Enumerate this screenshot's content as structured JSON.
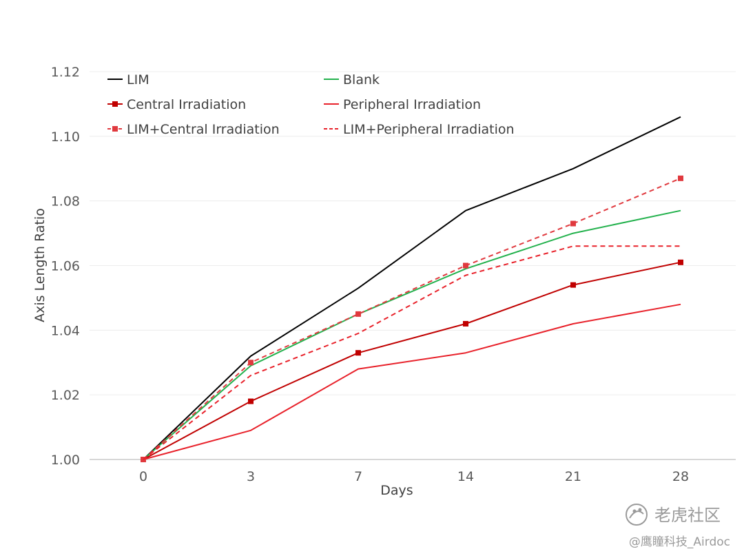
{
  "chart_data": {
    "type": "line",
    "title": "",
    "xlabel": "Days",
    "ylabel": "Axis Length Ratio",
    "categories": [
      "0",
      "3",
      "7",
      "14",
      "21",
      "28"
    ],
    "ylim": [
      1.0,
      1.12
    ],
    "yticks": [
      "1.00",
      "1.02",
      "1.04",
      "1.06",
      "1.08",
      "1.10",
      "1.12"
    ],
    "ytick_values": [
      1.0,
      1.02,
      1.04,
      1.06,
      1.08,
      1.1,
      1.12
    ],
    "grid": "horizontal",
    "legend_position": "top",
    "series": [
      {
        "name": "LIM",
        "values": [
          1.0,
          1.032,
          1.053,
          1.077,
          1.09,
          1.106
        ],
        "color": "#000000",
        "dash": "solid",
        "marker": "none"
      },
      {
        "name": "Blank",
        "values": [
          1.0,
          1.029,
          1.045,
          1.059,
          1.07,
          1.077
        ],
        "color": "#22b14c",
        "dash": "solid",
        "marker": "none"
      },
      {
        "name": "Central Irradiation",
        "values": [
          1.0,
          1.018,
          1.033,
          1.042,
          1.054,
          1.061
        ],
        "color": "#c00000",
        "dash": "solid",
        "marker": "square"
      },
      {
        "name": "Peripheral Irradiation",
        "values": [
          1.0,
          1.009,
          1.028,
          1.033,
          1.042,
          1.048
        ],
        "color": "#e8212a",
        "dash": "solid",
        "marker": "none"
      },
      {
        "name": "LIM+Central Irradiation",
        "values": [
          1.0,
          1.03,
          1.045,
          1.06,
          1.073,
          1.087
        ],
        "color": "#e0393e",
        "dash": "dashed",
        "marker": "square"
      },
      {
        "name": "LIM+Peripheral Irradiation",
        "values": [
          1.0,
          1.026,
          1.039,
          1.057,
          1.066,
          1.066
        ],
        "color": "#e8212a",
        "dash": "dashed",
        "marker": "none"
      }
    ]
  },
  "watermark": {
    "brand": "老虎社区",
    "credit": "@鹰瞳科技_Airdoc",
    "icon": "tiger-paw-icon"
  }
}
